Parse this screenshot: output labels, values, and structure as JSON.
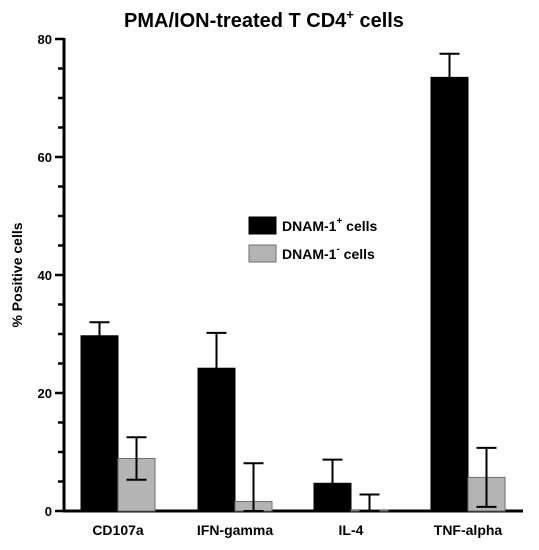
{
  "chart_data": {
    "type": "bar",
    "title": "PMA/ION-treated T CD4",
    "title_superscript": "+",
    "title_suffix": " cells",
    "ylabel": "% Positive cells",
    "xlabel": "",
    "ylim": [
      0,
      80
    ],
    "yticks": [
      0,
      20,
      40,
      60,
      80
    ],
    "categories": [
      "CD107a",
      "IFN-gamma",
      "IL-4",
      "TNF-alpha"
    ],
    "series": [
      {
        "name": "DNAM-1",
        "name_superscript": "+",
        "name_suffix": " cells",
        "color": "#000000",
        "values": [
          29.7,
          24.2,
          4.7,
          73.5
        ],
        "error": [
          2.3,
          6.0,
          4.0,
          4.0
        ]
      },
      {
        "name": "DNAM-1",
        "name_superscript": "-",
        "name_suffix": "  cells",
        "color": "#b4b4b4",
        "values": [
          8.9,
          1.6,
          0.2,
          5.7
        ],
        "error": [
          3.6,
          6.5,
          2.6,
          5.0
        ]
      }
    ],
    "legend_position": "center-right",
    "grid": false
  }
}
